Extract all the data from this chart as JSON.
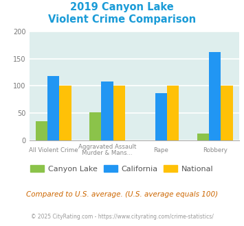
{
  "title_line1": "2019 Canyon Lake",
  "title_line2": "Violent Crime Comparison",
  "title_color": "#1a9bd7",
  "canyon_lake": [
    35,
    51,
    0,
    12
  ],
  "california": [
    118,
    108,
    87,
    162
  ],
  "national": [
    100,
    100,
    100,
    100
  ],
  "canyon_lake_color": "#8bc34a",
  "california_color": "#2196f3",
  "national_color": "#ffc107",
  "ylim": [
    0,
    200
  ],
  "yticks": [
    0,
    50,
    100,
    150,
    200
  ],
  "background_color": "#deeeed",
  "grid_color": "#ffffff",
  "legend_labels": [
    "Canyon Lake",
    "California",
    "National"
  ],
  "label_top": [
    "All Violent Crime",
    "Aggravated Assault",
    "Rape",
    "Robbery"
  ],
  "label_bot": [
    "",
    "Murder & Mans...",
    "",
    ""
  ],
  "footnote": "Compared to U.S. average. (U.S. average equals 100)",
  "footnote_color": "#cc6600",
  "copyright": "© 2025 CityRating.com - https://www.cityrating.com/crime-statistics/",
  "copyright_color": "#999999",
  "bar_width": 0.22
}
